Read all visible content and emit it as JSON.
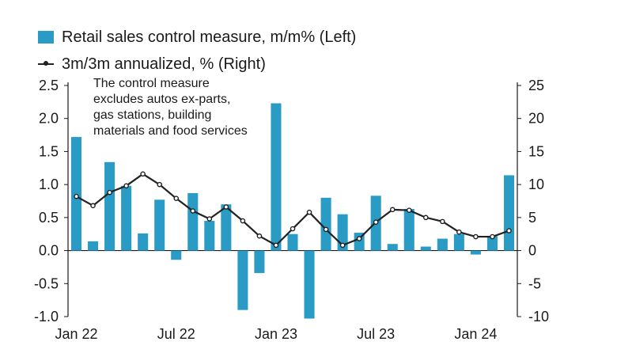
{
  "chart_data": {
    "type": "bar+line",
    "legend": [
      {
        "label": "Retail sales control measure, m/m% (Left)",
        "color": "#2a9bc4",
        "kind": "bar"
      },
      {
        "label": "3m/3m annualized, % (Right)",
        "color": "#222222",
        "kind": "line"
      }
    ],
    "annotation": [
      "The control measure",
      "excludes autos ex-parts,",
      "gas stations, building",
      "materials and food services"
    ],
    "months": [
      "Jan 22",
      "Feb 22",
      "Mar 22",
      "Apr 22",
      "May 22",
      "Jun 22",
      "Jul 22",
      "Aug 22",
      "Sep 22",
      "Oct 22",
      "Nov 22",
      "Dec 22",
      "Jan 23",
      "Feb 23",
      "Mar 23",
      "Apr 23",
      "May 23",
      "Jun 23",
      "Jul 23",
      "Aug 23",
      "Sep 23",
      "Oct 23",
      "Nov 23",
      "Dec 23",
      "Jan 24",
      "Feb 24",
      "Mar 24"
    ],
    "x_tick_labels": [
      {
        "index": 0,
        "label": "Jan 22"
      },
      {
        "index": 6,
        "label": "Jul 22"
      },
      {
        "index": 12,
        "label": "Jan 23"
      },
      {
        "index": 18,
        "label": "Jul 23"
      },
      {
        "index": 24,
        "label": "Jan 24"
      }
    ],
    "series": [
      {
        "name": "Retail sales control measure, m/m% (Left)",
        "axis": "left",
        "kind": "bar",
        "values": [
          1.72,
          0.14,
          1.34,
          0.98,
          0.26,
          0.77,
          -0.14,
          0.87,
          0.45,
          0.7,
          -0.9,
          -0.34,
          2.23,
          0.25,
          -1.03,
          0.8,
          0.55,
          0.27,
          0.83,
          0.1,
          0.63,
          0.06,
          0.18,
          0.25,
          -0.06,
          0.22,
          1.14
        ]
      },
      {
        "name": "3m/3m annualized, % (Right)",
        "axis": "right",
        "kind": "line",
        "values": [
          8.2,
          6.8,
          8.8,
          9.8,
          11.6,
          10.0,
          7.9,
          6.0,
          4.8,
          6.6,
          4.5,
          2.2,
          0.8,
          3.3,
          5.8,
          3.2,
          0.8,
          1.8,
          4.3,
          6.2,
          6.1,
          5.0,
          4.4,
          2.8,
          2.1,
          2.1,
          3.0
        ]
      }
    ],
    "y_left": {
      "min": -1.0,
      "max": 2.5,
      "ticks": [
        "2.5",
        "2.0",
        "1.5",
        "1.0",
        "0.5",
        "0.0",
        "-0.5",
        "-1.0"
      ]
    },
    "y_right": {
      "min": -10,
      "max": 25,
      "ticks": [
        "25",
        "20",
        "15",
        "10",
        "5",
        "0",
        "-5",
        "-10"
      ]
    }
  }
}
